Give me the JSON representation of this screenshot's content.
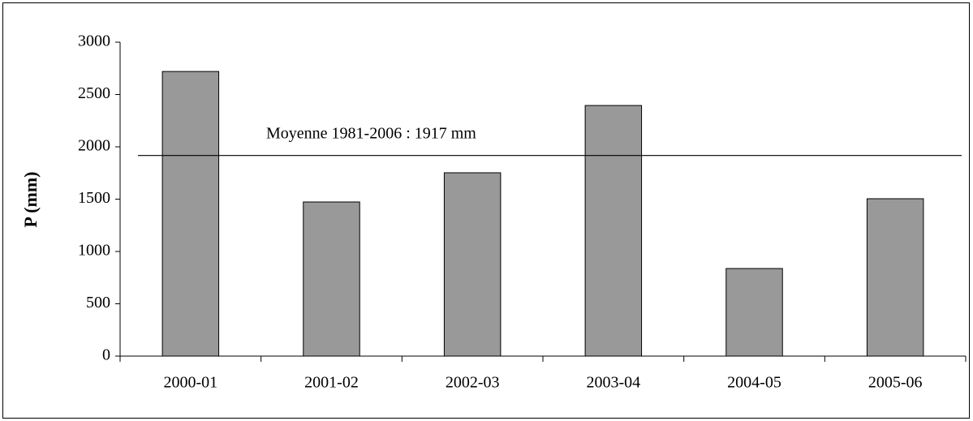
{
  "chart_data": {
    "type": "bar",
    "y_label": "P (mm)",
    "categories": [
      "2000-01",
      "2001-02",
      "2002-03",
      "2003-04",
      "2004-05",
      "2005-06"
    ],
    "values": [
      2720,
      1473,
      1752,
      2395,
      837,
      1504
    ],
    "color": "#999999",
    "ylim": [
      0,
      3000
    ],
    "yticks": [
      0,
      500,
      1000,
      1500,
      2000,
      2500,
      3000
    ],
    "grid": false,
    "reference_line": {
      "value": 1917,
      "label": "Moyenne 1981-2006 : 1917 mm"
    }
  }
}
